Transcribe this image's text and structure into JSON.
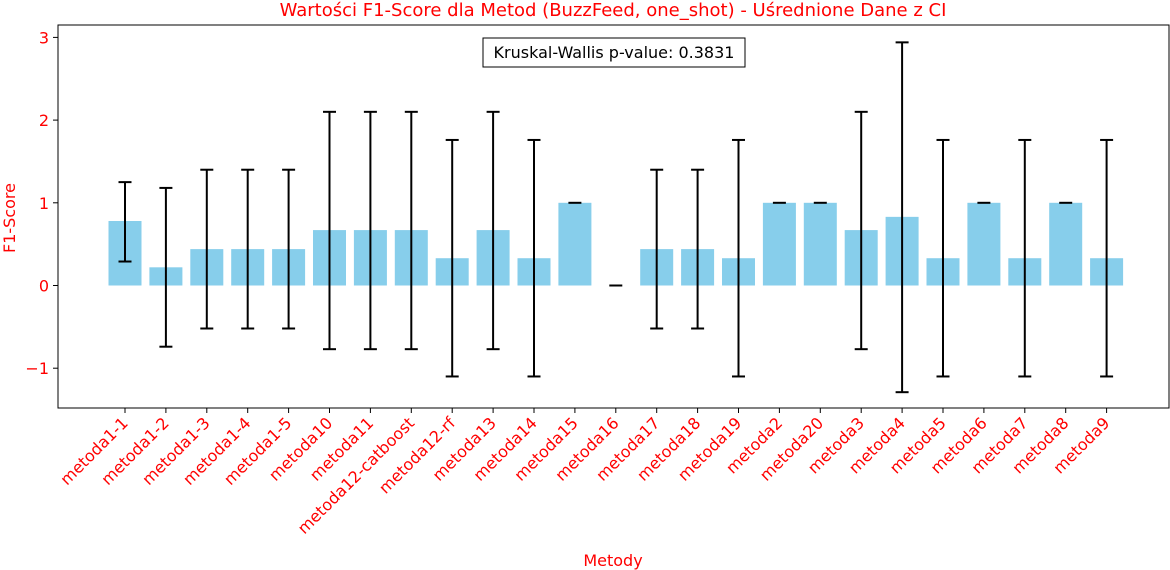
{
  "chart_data": {
    "type": "bar",
    "title": "Wartości F1-Score dla Metod (BuzzFeed, one_shot) - Uśrednione Dane z CI",
    "xlabel": "Metody",
    "ylabel": "F1-Score",
    "annotation": "Kruskal-Wallis p-value: 0.3831",
    "ylim": [
      -1.5,
      3.2
    ],
    "yticks": [
      -1,
      0,
      1,
      2,
      3
    ],
    "yticklabels": [
      "−1",
      "0",
      "1",
      "2",
      "3"
    ],
    "grid": false,
    "colors": {
      "bar": "#87ceeb",
      "text": "#ff0000",
      "errorbar": "#000000",
      "axis": "#000000"
    },
    "categories": [
      "metoda1-1",
      "metoda1-2",
      "metoda1-3",
      "metoda1-4",
      "metoda1-5",
      "metoda10",
      "metoda11",
      "metoda12-catboost",
      "metoda12-rf",
      "metoda13",
      "metoda14",
      "metoda15",
      "metoda16",
      "metoda17",
      "metoda18",
      "metoda19",
      "metoda2",
      "metoda20",
      "metoda3",
      "metoda4",
      "metoda5",
      "metoda6",
      "metoda7",
      "metoda8",
      "metoda9"
    ],
    "values": [
      0.78,
      0.22,
      0.44,
      0.44,
      0.44,
      0.67,
      0.67,
      0.67,
      0.33,
      0.67,
      0.33,
      1.0,
      0.0,
      0.44,
      0.44,
      0.33,
      1.0,
      1.0,
      0.67,
      0.83,
      0.33,
      1.0,
      0.33,
      1.0,
      0.33
    ],
    "ci_low": [
      0.29,
      -0.74,
      -0.52,
      -0.52,
      -0.52,
      -0.77,
      -0.77,
      -0.77,
      -1.1,
      -0.77,
      -1.1,
      1.0,
      0.0,
      -0.52,
      -0.52,
      -1.1,
      1.0,
      1.0,
      -0.77,
      -1.29,
      -1.1,
      1.0,
      -1.1,
      1.0,
      -1.1
    ],
    "ci_high": [
      1.25,
      1.18,
      1.4,
      1.4,
      1.4,
      2.1,
      2.1,
      2.1,
      1.76,
      2.1,
      1.76,
      1.0,
      0.0,
      1.4,
      1.4,
      1.76,
      1.0,
      1.0,
      2.1,
      2.94,
      1.76,
      1.0,
      1.76,
      1.0,
      1.76
    ]
  }
}
